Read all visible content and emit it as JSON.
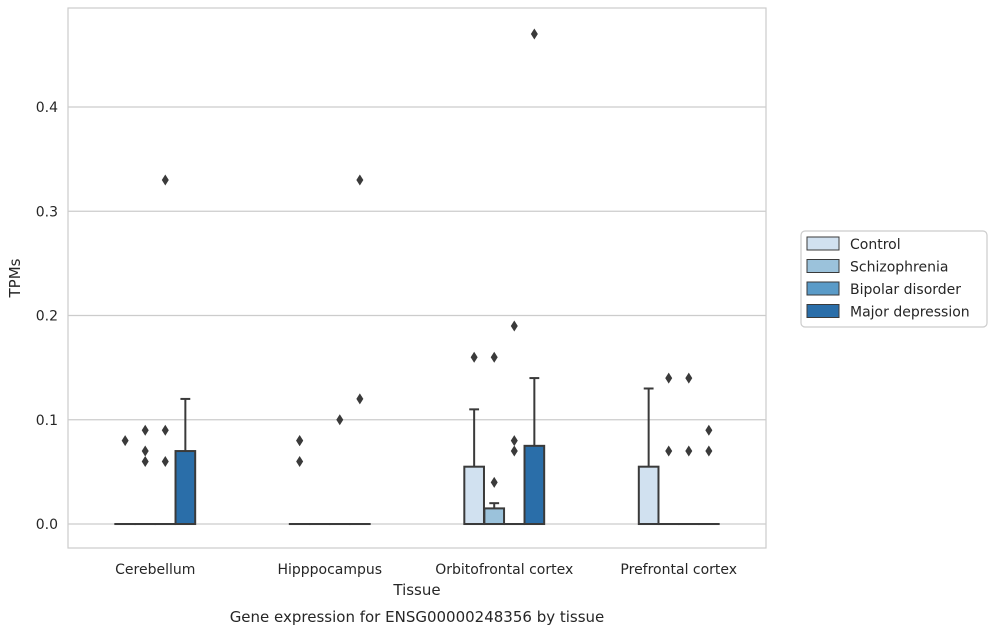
{
  "chart_data": {
    "type": "box",
    "caption": "Gene expression for ENSG00000248356 by tissue",
    "xlabel": "Tissue",
    "ylabel": "TPMs",
    "ylim": [
      -0.023,
      0.495
    ],
    "yticks": [
      0.0,
      0.1,
      0.2,
      0.3,
      0.4
    ],
    "ytick_labels": [
      "0.0",
      "0.1",
      "0.2",
      "0.3",
      "0.4"
    ],
    "grid": "horizontal",
    "legend_position": "right",
    "categories": [
      "Cerebellum",
      "Hipppocampus",
      "Orbitofrontal cortex",
      "Prefrontal cortex"
    ],
    "series": [
      {
        "name": "Control",
        "color": "#d1e1f0",
        "boxes": [
          {
            "q1": 0,
            "median": 0,
            "q3": 0,
            "whisker_low": 0,
            "whisker_high": 0,
            "outliers": [
              0.08
            ]
          },
          {
            "q1": 0,
            "median": 0,
            "q3": 0,
            "whisker_low": 0,
            "whisker_high": 0,
            "outliers": [
              0.06,
              0.08,
              0.08
            ]
          },
          {
            "q1": 0,
            "median": 0,
            "q3": 0.055,
            "whisker_low": 0,
            "whisker_high": 0.11,
            "outliers": [
              0.16
            ]
          },
          {
            "q1": 0,
            "median": 0,
            "q3": 0.055,
            "whisker_low": 0,
            "whisker_high": 0.13,
            "outliers": []
          }
        ]
      },
      {
        "name": "Schizophrenia",
        "color": "#9bc2db",
        "boxes": [
          {
            "q1": 0,
            "median": 0,
            "q3": 0,
            "whisker_low": 0,
            "whisker_high": 0,
            "outliers": [
              0.06,
              0.07,
              0.09
            ]
          },
          {
            "q1": 0,
            "median": 0,
            "q3": 0,
            "whisker_low": 0,
            "whisker_high": 0,
            "outliers": []
          },
          {
            "q1": 0,
            "median": 0,
            "q3": 0.015,
            "whisker_low": 0,
            "whisker_high": 0.02,
            "outliers": [
              0.04,
              0.16
            ]
          },
          {
            "q1": 0,
            "median": 0,
            "q3": 0,
            "whisker_low": 0,
            "whisker_high": 0,
            "outliers": [
              0.07,
              0.14
            ]
          }
        ]
      },
      {
        "name": "Bipolar disorder",
        "color": "#5a9bc8",
        "boxes": [
          {
            "q1": 0,
            "median": 0,
            "q3": 0,
            "whisker_low": 0,
            "whisker_high": 0,
            "outliers": [
              0.06,
              0.09,
              0.33
            ]
          },
          {
            "q1": 0,
            "median": 0,
            "q3": 0,
            "whisker_low": 0,
            "whisker_high": 0,
            "outliers": [
              0.1
            ]
          },
          {
            "q1": 0,
            "median": 0,
            "q3": 0,
            "whisker_low": 0,
            "whisker_high": 0,
            "outliers": [
              0.07,
              0.08,
              0.19
            ]
          },
          {
            "q1": 0,
            "median": 0,
            "q3": 0,
            "whisker_low": 0,
            "whisker_high": 0,
            "outliers": [
              0.07,
              0.14
            ]
          }
        ]
      },
      {
        "name": "Major depression",
        "color": "#2a6ea9",
        "boxes": [
          {
            "q1": 0,
            "median": 0,
            "q3": 0.07,
            "whisker_low": 0,
            "whisker_high": 0.12,
            "outliers": []
          },
          {
            "q1": 0,
            "median": 0,
            "q3": 0,
            "whisker_low": 0,
            "whisker_high": 0,
            "outliers": [
              0.12,
              0.33
            ]
          },
          {
            "q1": 0,
            "median": 0,
            "q3": 0.075,
            "whisker_low": 0,
            "whisker_high": 0.14,
            "outliers": [
              0.47
            ]
          },
          {
            "q1": 0,
            "median": 0,
            "q3": 0,
            "whisker_low": 0,
            "whisker_high": 0,
            "outliers": [
              0.07,
              0.09
            ]
          }
        ]
      }
    ]
  }
}
